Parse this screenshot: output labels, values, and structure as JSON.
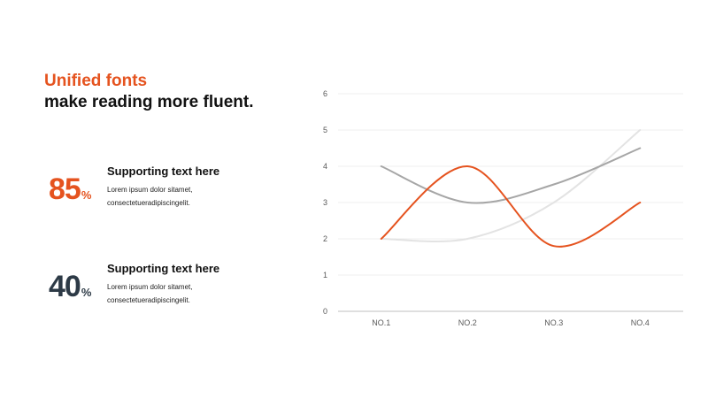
{
  "headline": {
    "line1": "Unified fonts",
    "line2": "make reading more fluent."
  },
  "stats": [
    {
      "value": "85",
      "unit": "%",
      "title": "Supporting text here",
      "body": "Lorem ipsum dolor sitamet, consectetueradipiscingelit."
    },
    {
      "value": "40",
      "unit": "%",
      "title": "Supporting text here",
      "body": "Lorem ipsum dolor sitamet, consectetueradipiscingelit."
    }
  ],
  "colors": {
    "accent": "#e5531f",
    "dark": "#2d3a46",
    "series_gray": "#a6a6a6",
    "series_light": "#e3e3e3"
  },
  "chart_data": {
    "type": "line",
    "smooth": true,
    "categories": [
      "NO.1",
      "NO.2",
      "NO.3",
      "NO.4"
    ],
    "ylim": [
      0,
      6
    ],
    "yticks": [
      0,
      1,
      2,
      3,
      4,
      5,
      6
    ],
    "grid": true,
    "legend": "none",
    "title": "",
    "xlabel": "",
    "ylabel": "",
    "series": [
      {
        "values": [
          2,
          2,
          3,
          5
        ],
        "color": "#e3e3e3"
      },
      {
        "values": [
          4,
          3,
          3.5,
          4.5
        ],
        "color": "#a6a6a6"
      },
      {
        "values": [
          2,
          4,
          1.8,
          3
        ],
        "color": "#e5531f"
      }
    ]
  }
}
